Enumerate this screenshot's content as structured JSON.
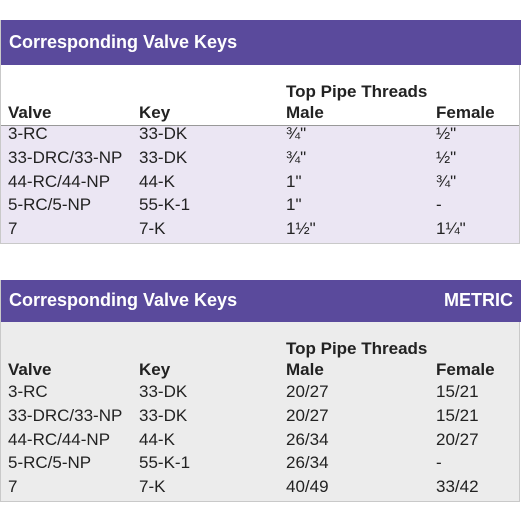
{
  "tables": [
    {
      "title": "Corresponding Valve Keys",
      "group_header": "Top Pipe Threads",
      "headers": [
        "Valve",
        "Key",
        "Male",
        "Female"
      ],
      "rows": [
        [
          "3-RC",
          "33-DK",
          "¾\"",
          "½\""
        ],
        [
          "33-DRC/33-NP",
          "33-DK",
          "¾\"",
          "½\""
        ],
        [
          "44-RC/44-NP",
          "44-K",
          "1\"",
          "¾\""
        ],
        [
          "5-RC/5-NP",
          "55-K-1",
          "1\"",
          "-"
        ],
        [
          "7",
          "7-K",
          "1½\"",
          "1¼\""
        ]
      ]
    },
    {
      "title": "Corresponding Valve Keys",
      "badge": "METRIC",
      "group_header": "Top Pipe Threads",
      "headers": [
        "Valve",
        "Key",
        "Male",
        "Female"
      ],
      "rows": [
        [
          "3-RC",
          "33-DK",
          "20/27",
          "15/21"
        ],
        [
          "33-DRC/33-NP",
          "33-DK",
          "20/27",
          "15/21"
        ],
        [
          "44-RC/44-NP",
          "44-K",
          "26/34",
          "20/27"
        ],
        [
          "5-RC/5-NP",
          "55-K-1",
          "26/34",
          "-"
        ],
        [
          "7",
          "7-K",
          "40/49",
          "33/42"
        ]
      ]
    }
  ]
}
